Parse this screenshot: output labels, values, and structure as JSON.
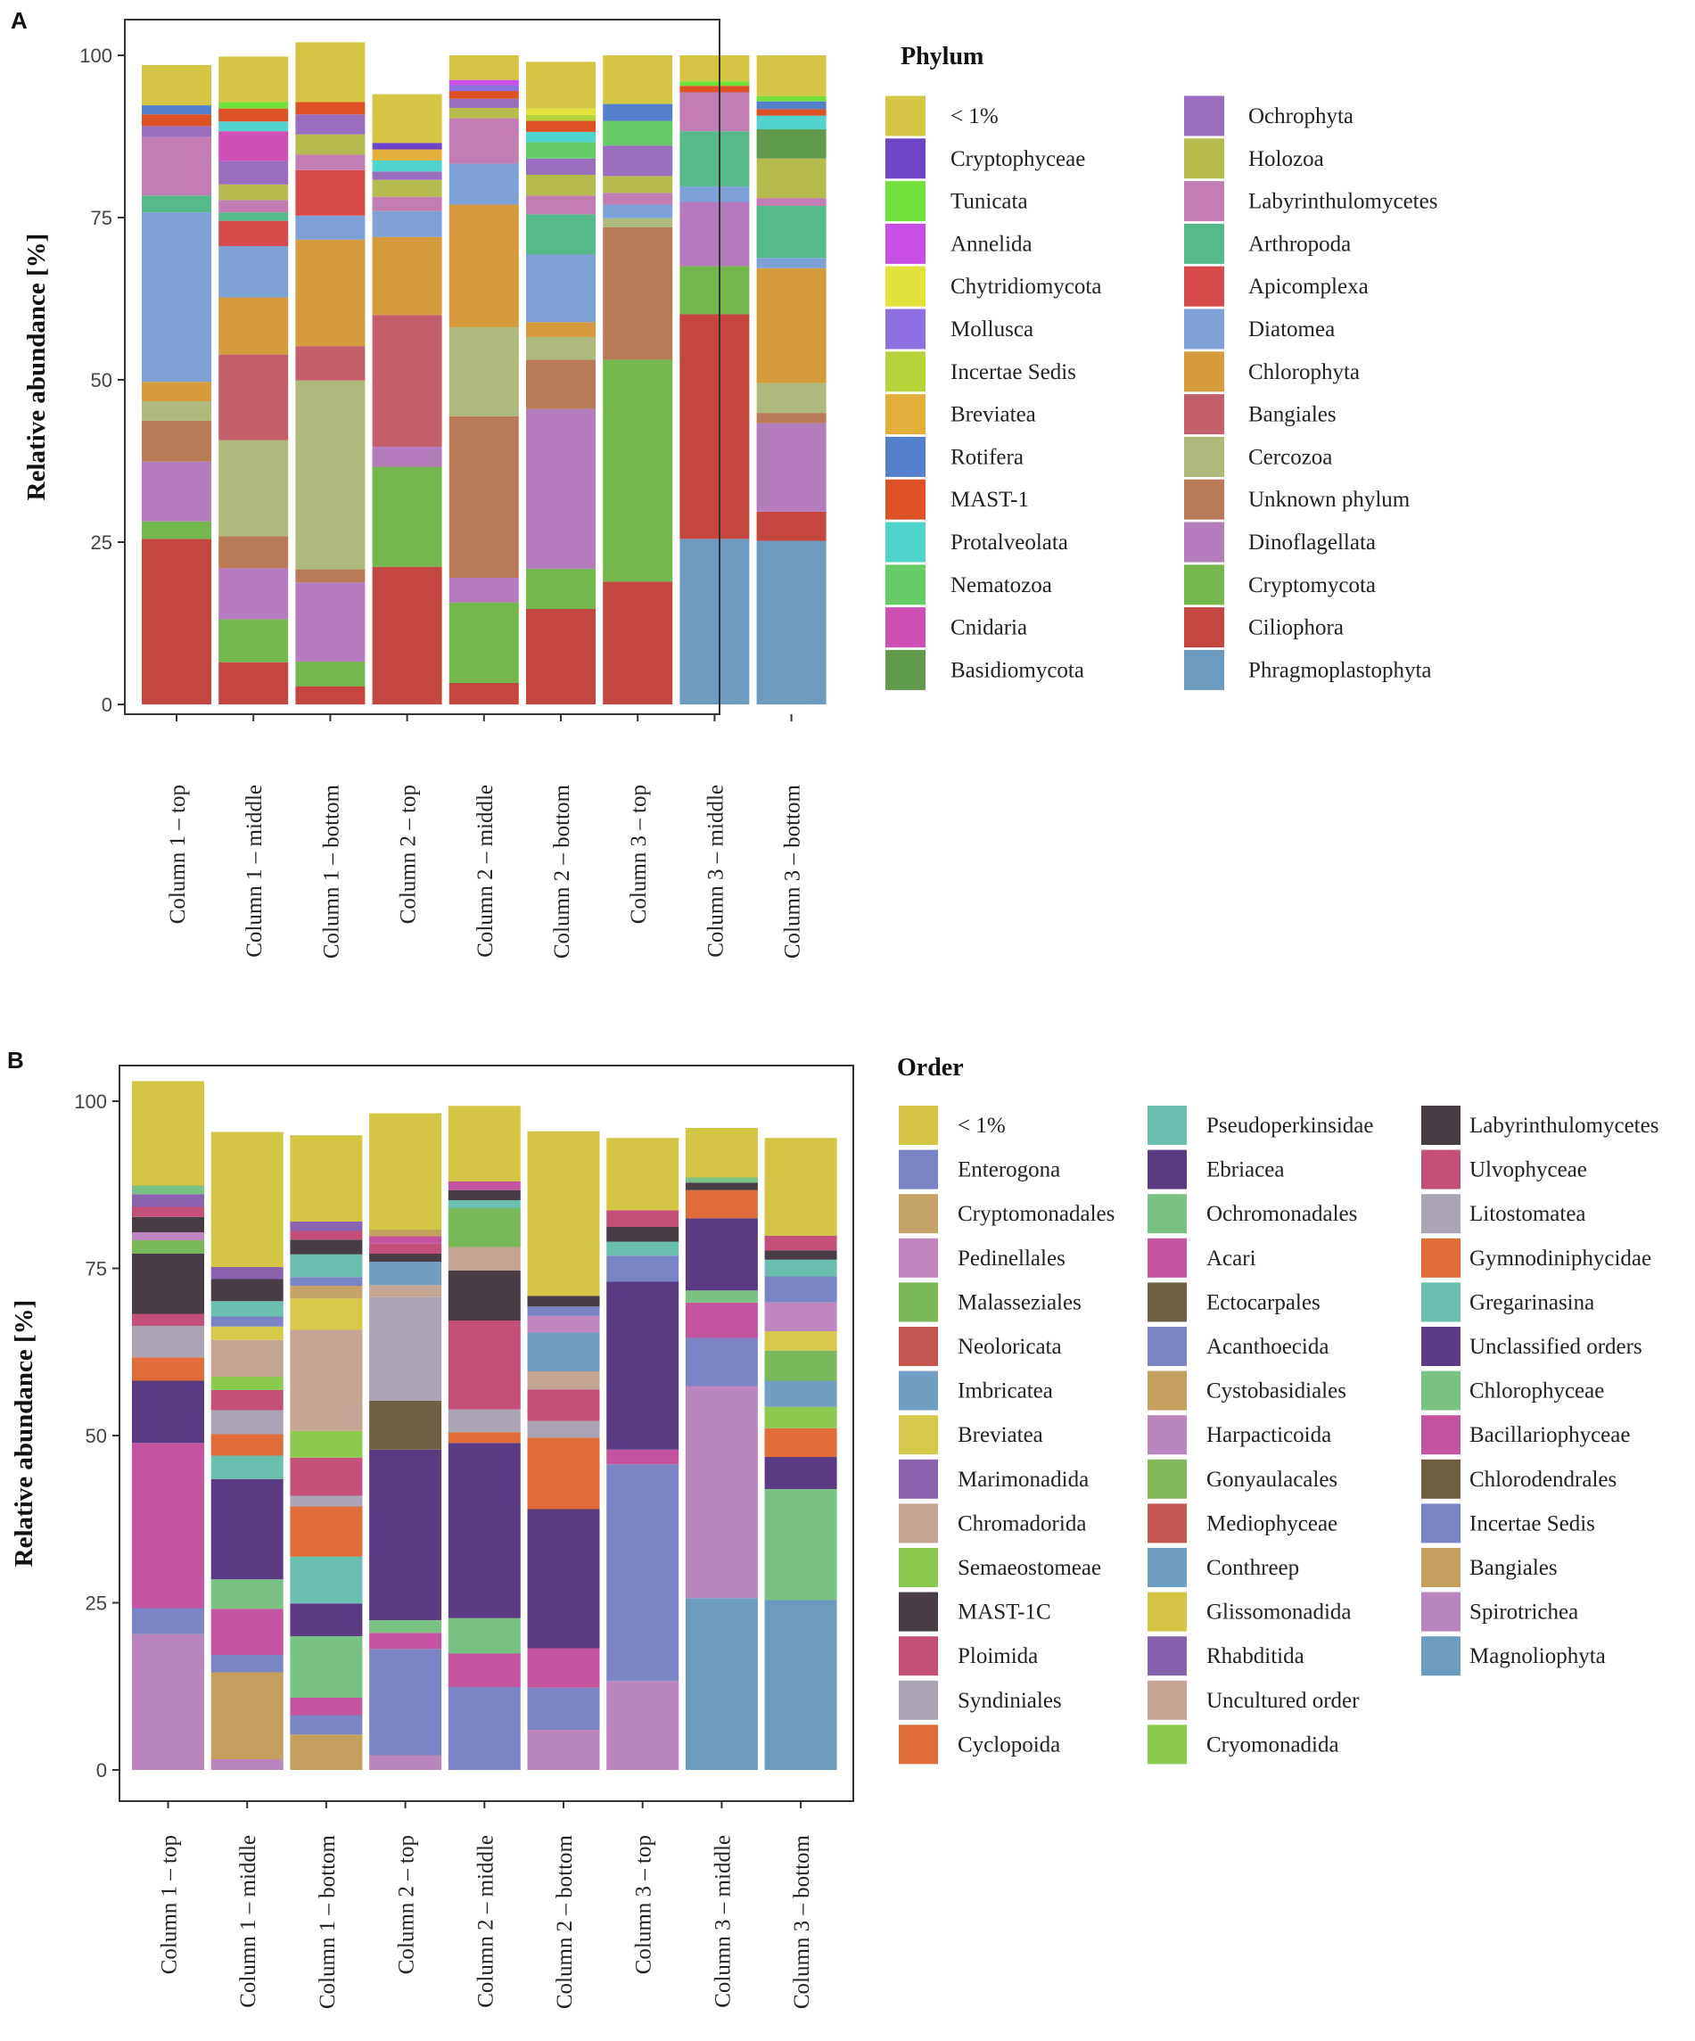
{
  "chart_data": [
    {
      "panel_label": "A",
      "type": "bar",
      "stacked": true,
      "ylabel": "Relative abundance [%]",
      "ylim": [
        0,
        100
      ],
      "yticks": [
        "0",
        "25",
        "50",
        "75",
        "100"
      ],
      "categories": [
        "Column 1 – top",
        "Column 1 – middle",
        "Column 1 – bottom",
        "Column 2 – top",
        "Column 2 – middle",
        "Column 2 – bottom",
        "Column 3 – top",
        "Column 3 – middle",
        "Column 3 – bottom"
      ],
      "legend_title": "Phylum",
      "legend_position": "right",
      "legend_columns": [
        [
          "< 1%",
          "Cryptophyceae",
          "Tunicata",
          "Annelida",
          "Chytridiomycota",
          "Mollusca",
          "Incertae Sedis",
          "Breviatea",
          "Rotifera",
          "MAST-1",
          "Protalveolata",
          "Nematozoa",
          "Cnidaria",
          "Basidiomycota"
        ],
        [
          "Ochrophyta",
          "Holozoa",
          "Labyrinthulomycetes",
          "Arthropoda",
          "Apicomplexa",
          "Diatomea",
          "Chlorophyta",
          "Bangiales",
          "Cercozoa",
          "Unknown phylum",
          "Dinoflagellata",
          "Cryptomycota",
          "Ciliophora",
          "Phragmoplastophyta"
        ]
      ],
      "colors": {
        "< 1%": "#d4c544",
        "Cryptophyceae": "#6f45c8",
        "Tunicata": "#72e03a",
        "Annelida": "#c84ee6",
        "Chytridiomycota": "#e2e33a",
        "Mollusca": "#8d6fe0",
        "Incertae Sedis": "#b5d43a",
        "Breviatea": "#e3ae3a",
        "Rotifera": "#5380cd",
        "MAST-1": "#dc5225",
        "Protalveolata": "#50d3cc",
        "Nematozoa": "#66cc66",
        "Cnidaria": "#cf50b5",
        "Basidiomycota": "#5e9a4a",
        "Ochrophyta": "#9a6ebe",
        "Holozoa": "#b5bb4c",
        "Labyrinthulomycetes": "#c27db2",
        "Arthropoda": "#56b989",
        "Apicomplexa": "#d64a4a",
        "Diatomea": "#7ea1d8",
        "Chlorophyta": "#d69b3c",
        "Bangiales": "#c25f6a",
        "Cercozoa": "#aeba7b",
        "Unknown phylum": "#b97a58",
        "Dinoflagellata": "#b57cbd",
        "Cryptomycota": "#73b74d",
        "Ciliophora": "#c4463e",
        "Phragmoplastophyta": "#6d9bc0"
      },
      "series": [
        {
          "name": "Phragmoplastophyta",
          "values": [
            0,
            0,
            0,
            0,
            0,
            0,
            0,
            25.5,
            25.2
          ]
        },
        {
          "name": "Ciliophora",
          "values": [
            25.5,
            6.5,
            2.8,
            21.2,
            3.3,
            14.7,
            18.9,
            34.6,
            4.5
          ]
        },
        {
          "name": "Cryptomycota",
          "values": [
            2.7,
            6.6,
            3.8,
            15.4,
            12.4,
            6.2,
            34.2,
            7.4,
            0
          ]
        },
        {
          "name": "Dinoflagellata",
          "values": [
            9.2,
            7.9,
            12.2,
            3.1,
            3.8,
            24.6,
            0,
            9.9,
            13.6
          ]
        },
        {
          "name": "Unknown phylum",
          "values": [
            6.3,
            4.9,
            2.0,
            0,
            24.9,
            7.6,
            20.4,
            0,
            1.6
          ]
        },
        {
          "name": "Cercozoa",
          "values": [
            3.0,
            14.8,
            29.1,
            0,
            13.7,
            3.5,
            1.4,
            0,
            4.6
          ]
        },
        {
          "name": "Bangiales",
          "values": [
            0,
            13.2,
            5.3,
            20.3,
            0,
            0,
            0,
            0,
            0
          ]
        },
        {
          "name": "Chlorophyta",
          "values": [
            3.0,
            8.8,
            16.4,
            12.0,
            18.9,
            2.3,
            0,
            0,
            17.7
          ]
        },
        {
          "name": "Diatomea",
          "values": [
            26.1,
            7.9,
            3.7,
            4.0,
            6.3,
            10.4,
            2.1,
            2.4,
            1.6
          ]
        },
        {
          "name": "Apicomplexa",
          "values": [
            0,
            3.9,
            7.0,
            0,
            0,
            0,
            0,
            0,
            0
          ]
        },
        {
          "name": "Arthropoda",
          "values": [
            2.6,
            1.3,
            0,
            0,
            0,
            6.2,
            0,
            8.5,
            8.0
          ]
        },
        {
          "name": "Labyrinthulomycetes",
          "values": [
            9.0,
            1.9,
            2.4,
            2.2,
            7.0,
            2.9,
            1.8,
            6.0,
            1.2
          ]
        },
        {
          "name": "Holozoa",
          "values": [
            0,
            2.4,
            3.1,
            2.6,
            1.6,
            3.2,
            2.6,
            0,
            6.1
          ]
        },
        {
          "name": "Ochrophyta",
          "values": [
            1.7,
            3.6,
            3.1,
            1.3,
            1.4,
            2.5,
            4.7,
            0,
            0
          ]
        },
        {
          "name": "Basidiomycota",
          "values": [
            0,
            0,
            0,
            0,
            0,
            0,
            0,
            0,
            4.5
          ]
        },
        {
          "name": "Cnidaria",
          "values": [
            0,
            4.6,
            0,
            0,
            0,
            0,
            0,
            0,
            0
          ]
        },
        {
          "name": "Nematozoa",
          "values": [
            0,
            0,
            0,
            0,
            0,
            2.5,
            3.8,
            0,
            0
          ]
        },
        {
          "name": "Protalveolata",
          "values": [
            0,
            1.5,
            0,
            1.7,
            0,
            1.6,
            0,
            0,
            2.1
          ]
        },
        {
          "name": "MAST-1",
          "values": [
            1.8,
            2.0,
            1.9,
            0,
            1.2,
            1.7,
            0,
            1.0,
            1.0
          ]
        },
        {
          "name": "Rotifera",
          "values": [
            1.4,
            0,
            0,
            0,
            0,
            0,
            2.6,
            0,
            1.2
          ]
        },
        {
          "name": "Breviatea",
          "values": [
            0,
            0,
            0,
            1.7,
            0,
            0,
            0,
            0,
            0
          ]
        },
        {
          "name": "Incertae Sedis",
          "values": [
            0,
            0,
            0,
            0,
            0,
            0.9,
            0,
            0,
            0
          ]
        },
        {
          "name": "Mollusca",
          "values": [
            0,
            0,
            0,
            0,
            0.9,
            0,
            0,
            0,
            0
          ]
        },
        {
          "name": "Chytridiomycota",
          "values": [
            0,
            0,
            0,
            0,
            0,
            1.0,
            0,
            0,
            0
          ]
        },
        {
          "name": "Annelida",
          "values": [
            0,
            0,
            0,
            0,
            0.8,
            0,
            0,
            0,
            0
          ]
        },
        {
          "name": "Tunicata",
          "values": [
            0,
            1.0,
            0,
            0,
            0,
            0,
            0,
            0.7,
            0.8
          ]
        },
        {
          "name": "Cryptophyceae",
          "values": [
            0,
            0,
            0,
            1.0,
            0,
            0,
            0,
            0,
            0
          ]
        },
        {
          "name": "< 1%",
          "values": [
            6.2,
            7.0,
            9.2,
            7.5,
            3.8,
            7.2,
            7.5,
            4.0,
            6.3
          ]
        }
      ]
    },
    {
      "panel_label": "B",
      "type": "bar",
      "stacked": true,
      "ylabel": "Relative abundance [%]",
      "ylim": [
        0,
        100
      ],
      "yticks": [
        "0",
        "25",
        "50",
        "75",
        "100"
      ],
      "categories": [
        "Column 1 – top",
        "Column 1 – middle",
        "Column 1 – bottom",
        "Column 2 – top",
        "Column 2 – middle",
        "Column 2 – bottom",
        "Column 3 – top",
        "Column 3 – middle",
        "Column 3 – bottom"
      ],
      "legend_title": "Order",
      "legend_position": "right",
      "legend_columns": [
        [
          "< 1%",
          "Enterogona",
          "Cryptomonadales",
          "Pedinellales",
          "Malasseziales",
          "Neoloricata",
          "Imbricatea",
          "Breviatea",
          "Marimonadida",
          "Chromadorida",
          "Semaeostomeae",
          "MAST-1C",
          "Ploimida",
          "Syndiniales",
          "Cyclopoida"
        ],
        [
          "Pseudoperkinsidae",
          "Ebriacea",
          "Ochromonadales",
          "Acari",
          "Ectocarpales",
          "Acanthoecida",
          "Cystobasidiales",
          "Harpacticoida",
          "Gonyaulacales",
          "Mediophyceae",
          "Conthreep",
          "Glissomonadida",
          "Rhabditida",
          "Uncultured order",
          "Cryomonadida"
        ],
        [
          "Labyrinthulomycetes",
          "Ulvophyceae",
          "Litostomatea",
          "Gymnodiniphycidae",
          "Gregarinasina",
          "Unclassified orders",
          "Chlorophyceae",
          "Bacillariophyceae",
          "Chlorodendrales",
          "Incertae Sedis",
          "Bangiales",
          "Spirotrichea",
          "Magnoliophyta"
        ]
      ],
      "colors": {
        "< 1%": "#d4c544",
        "Enterogona": "#7a84c4",
        "Cryptomonadales": "#c4a268",
        "Pedinellales": "#c086c0",
        "Malasseziales": "#7ab85a",
        "Neoloricata": "#c4574f",
        "Imbricatea": "#739ec4",
        "Breviatea": "#d6c84a",
        "Marimonadida": "#8a62ad",
        "Chromadorida": "#c4a594",
        "Semaeostomeae": "#8cc94f",
        "MAST-1C": "#483c45",
        "Ploimida": "#c4507a",
        "Syndiniales": "#aaa4b4",
        "Cyclopoida": "#df6c39",
        "Pseudoperkinsidae": "#6abfae",
        "Ebriacea": "#5a3a82",
        "Ochromonadales": "#7ac283",
        "Acari": "#c453a0",
        "Ectocarpales": "#6e6044",
        "Acanthoecida": "#7b84c4",
        "Cystobasidiales": "#c4a05e",
        "Harpacticoida": "#bb85bf",
        "Gonyaulacales": "#82b85a",
        "Mediophyceae": "#c4574f",
        "Conthreep": "#6e9ec4",
        "Glissomonadida": "#d4c544",
        "Rhabditida": "#8462ad",
        "Uncultured order": "#c4a594",
        "Cryomonadida": "#8cc94f",
        "Labyrinthulomycetes": "#483c45",
        "Ulvophyceae": "#c4507a",
        "Litostomatea": "#aaa4b4",
        "Gymnodiniphycidae": "#df6c39",
        "Gregarinasina": "#6abfae",
        "Unclassified orders": "#5a3a82",
        "Chlorophyceae": "#7ac283",
        "Bacillariophyceae": "#c453a0",
        "Chlorodendrales": "#6e6044",
        "Incertae Sedis": "#7b84c4",
        "Bangiales": "#c4a05e",
        "Spirotrichea": "#bb85bf",
        "Magnoliophyta": "#6d9bc0"
      },
      "series": [
        {
          "name": "Magnoliophyta",
          "values": [
            0,
            0,
            0,
            0,
            0,
            0,
            0,
            25.7,
            25.4
          ]
        },
        {
          "name": "Spirotrichea",
          "values": [
            20.3,
            1.6,
            0,
            2.2,
            0,
            6.0,
            13.3,
            31.7,
            0
          ]
        },
        {
          "name": "Bangiales",
          "values": [
            0,
            13.0,
            5.3,
            0,
            0,
            0,
            0,
            0,
            0
          ]
        },
        {
          "name": "Incertae Sedis",
          "values": [
            3.9,
            2.6,
            2.9,
            15.9,
            12.4,
            6.3,
            32.4,
            7.2,
            0
          ]
        },
        {
          "name": "Bacillariophyceae",
          "values": [
            24.7,
            6.9,
            2.6,
            2.4,
            5.0,
            5.9,
            2.2,
            5.3,
            0
          ]
        },
        {
          "name": "Chlorophyceae",
          "values": [
            0,
            4.4,
            9.2,
            1.9,
            5.3,
            0,
            0,
            1.8,
            16.6
          ]
        },
        {
          "name": "Unclassified orders",
          "values": [
            9.3,
            15.0,
            4.9,
            25.5,
            26.2,
            20.8,
            25.1,
            10.8,
            4.8
          ]
        },
        {
          "name": "Ectocarpales",
          "values": [
            0,
            0,
            0,
            7.3,
            0,
            0,
            0,
            0,
            0
          ]
        },
        {
          "name": "Gregarinasina",
          "values": [
            0,
            3.5,
            7.0,
            0,
            0,
            0,
            0,
            0,
            0
          ]
        },
        {
          "name": "Gymnodiniphycidae",
          "values": [
            3.5,
            3.2,
            7.5,
            0,
            1.6,
            10.7,
            0,
            4.2,
            4.3
          ]
        },
        {
          "name": "Litostomatea",
          "values": [
            4.7,
            3.6,
            1.6,
            15.5,
            3.4,
            2.5,
            0,
            0,
            0
          ]
        },
        {
          "name": "Ploimida",
          "values": [
            1.8,
            3.0,
            5.7,
            0,
            13.3,
            4.7,
            0,
            0,
            0
          ]
        },
        {
          "name": "MAST-1C",
          "values": [
            9.0,
            0,
            0,
            0,
            7.5,
            0,
            0,
            0,
            0
          ]
        },
        {
          "name": "Semaeostomeae",
          "values": [
            0,
            2.0,
            4.0,
            0,
            0,
            0,
            0,
            0,
            3.2
          ]
        },
        {
          "name": "Chromadorida",
          "values": [
            0,
            5.5,
            15.1,
            1.8,
            3.5,
            2.7,
            0,
            0,
            0
          ]
        },
        {
          "name": "Imbricatea",
          "values": [
            0,
            0,
            0,
            3.5,
            0,
            5.8,
            0,
            0,
            3.9
          ]
        },
        {
          "name": "Malasseziales",
          "values": [
            2.0,
            0,
            0,
            0,
            5.8,
            0,
            0,
            0,
            4.5
          ]
        },
        {
          "name": "Breviatea",
          "values": [
            0,
            2.0,
            4.7,
            0,
            0,
            0,
            0,
            0,
            2.9
          ]
        },
        {
          "name": "Pedinellales",
          "values": [
            1.2,
            0,
            0,
            0,
            0,
            2.5,
            0,
            0,
            4.3
          ]
        },
        {
          "name": "Cryptomonadales",
          "values": [
            0,
            0,
            1.9,
            0,
            0,
            0,
            0,
            0,
            0
          ]
        },
        {
          "name": "Enterogona",
          "values": [
            0,
            1.5,
            1.3,
            0,
            0,
            1.4,
            3.9,
            0,
            3.9
          ]
        },
        {
          "name": "Pseudoperkinsidae",
          "values": [
            0,
            2.3,
            3.4,
            0,
            1.2,
            0,
            2.1,
            0,
            2.5
          ]
        },
        {
          "name": "Labyrinthulomycetes",
          "values": [
            2.3,
            3.3,
            2.2,
            1.2,
            1.5,
            1.6,
            2.2,
            1.1,
            1.4
          ]
        },
        {
          "name": "Ulvophyceae",
          "values": [
            1.5,
            0,
            1.3,
            1.5,
            0,
            0,
            2.5,
            0,
            2.2
          ]
        },
        {
          "name": "Marimonadida",
          "values": [
            1.9,
            1.8,
            1.4,
            0,
            0,
            0,
            0,
            0,
            0
          ]
        },
        {
          "name": "Acari",
          "values": [
            0,
            0,
            0,
            1.1,
            1.3,
            0,
            0,
            0,
            0
          ]
        },
        {
          "name": "Ochromonadales",
          "values": [
            1.3,
            0,
            0,
            0,
            0,
            0,
            0,
            0.8,
            0
          ]
        },
        {
          "name": "Cystobasidiales",
          "values": [
            0,
            0,
            0,
            1.0,
            0,
            0,
            0,
            0,
            0
          ]
        },
        {
          "name": "< 1%",
          "values": [
            15.6,
            20.2,
            12.9,
            17.4,
            11.3,
            24.6,
            10.8,
            7.4,
            14.6
          ]
        }
      ]
    }
  ]
}
